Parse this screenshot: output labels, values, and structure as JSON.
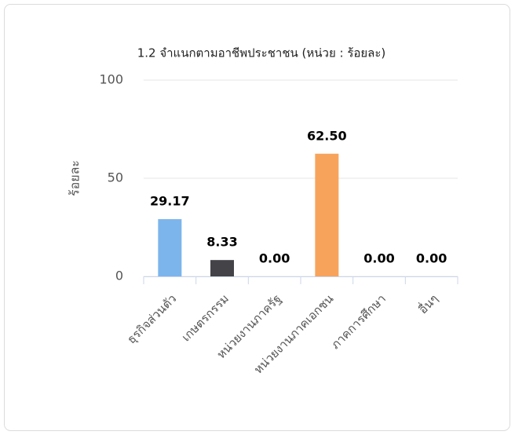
{
  "chart_data": {
    "type": "bar",
    "title": "1.2 จำแนกตามอาชีพประชาชน (หน่วย : ร้อยละ)",
    "y_axis_label": "ร้อยละ",
    "categories": [
      "ธุรกิจส่วนตัว",
      "เกษตรกรรม",
      "หน่วยงานภาครัฐ",
      "หน่วยงานภาคเอกชน",
      "ภาคการศึกษา",
      "อื่นๆ"
    ],
    "values": [
      29.17,
      8.33,
      0,
      62.5,
      0,
      0
    ],
    "value_labels": [
      "29.17",
      "8.33",
      "0.00",
      "62.50",
      "0.00",
      "0.00"
    ],
    "colors": [
      "#7cb5ec",
      "#434348",
      "#90ed7d",
      "#f7a35c",
      "#8085e9",
      "#f15c80"
    ],
    "ylim": [
      0,
      100
    ],
    "yticks": [
      0,
      50,
      100
    ],
    "grid": true
  }
}
